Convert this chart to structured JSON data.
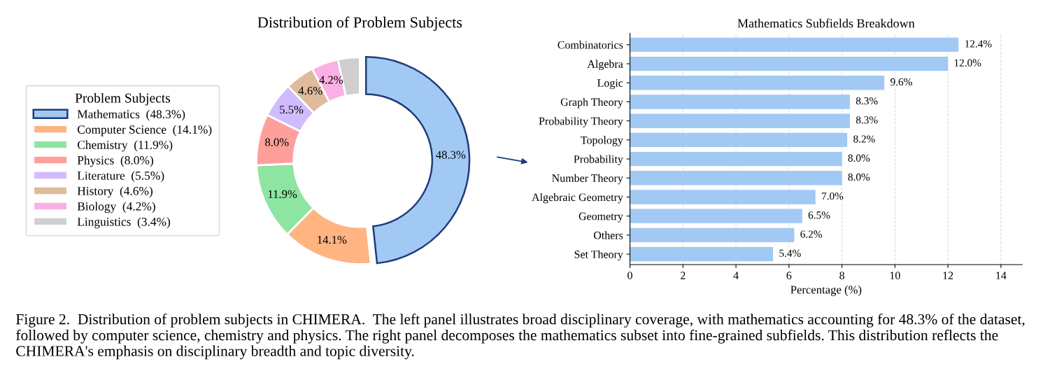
{
  "chart_data": [
    {
      "type": "donut",
      "title": "Distribution of Problem Subjects",
      "legend_title": "Problem Subjects",
      "legend": "left",
      "categories": [
        "Mathematics  (48.3%)",
        "Computer Science  (14.1%)",
        "Chemistry  (11.9%)",
        "Physics  (8.0%)",
        "Literature  (5.5%)",
        "History  (4.6%)",
        "Biology  (4.2%)",
        "Linguistics  (3.4%)"
      ],
      "values": [
        48.3,
        14.1,
        11.9,
        8.0,
        5.5,
        4.6,
        4.2,
        3.4
      ],
      "colors": [
        "#a1c9f4",
        "#ffb482",
        "#8de5a1",
        "#ff9f9b",
        "#d0bbff",
        "#debb9b",
        "#fab0e4",
        "#cfcfcf"
      ],
      "value_labels": [
        "48.3%",
        "14.1%",
        "11.9%",
        "8.0%",
        "5.5%",
        "4.6%",
        "4.2%",
        null
      ],
      "annotations": [
        "Figure 2.  Distribution of problem subjects in CHIMERA.  The left panel illustrates broad disciplinary coverage, with mathematics accounting for 48.3% of the dataset, followed by computer science, chemistry and physics. The right panel decomposes the mathematics subset into fine-grained subfields. This distribution reflects the CHIMERA's emphasis on disciplinary breadth and topic diversity."
      ]
    },
    {
      "type": "bar",
      "orientation": "horizontal",
      "title": "Mathematics Subfields Breakdown",
      "xlabel": "Percentage (%)",
      "categories": [
        "Combinatorics",
        "Algebra",
        "Logic",
        "Graph Theory",
        "Probability Theory",
        "Topology",
        "Probability",
        "Number Theory",
        "Algebraic Geometry",
        "Geometry",
        "Others",
        "Set Theory"
      ],
      "values": [
        12.4,
        12.0,
        9.6,
        8.3,
        8.3,
        8.2,
        8.0,
        8.0,
        7.0,
        6.5,
        6.2,
        5.4
      ],
      "value_labels": [
        "12.4%",
        "12.0%",
        "9.6%",
        "8.3%",
        "8.3%",
        "8.2%",
        "8.0%",
        "8.0%",
        "7.0%",
        "6.5%",
        "6.2%",
        "5.4%"
      ],
      "color": "#a1c9f4",
      "xlim": [
        0,
        14.8
      ],
      "xticks": [
        0,
        2,
        4,
        6,
        8,
        10,
        12,
        14
      ],
      "grid": "x"
    }
  ]
}
